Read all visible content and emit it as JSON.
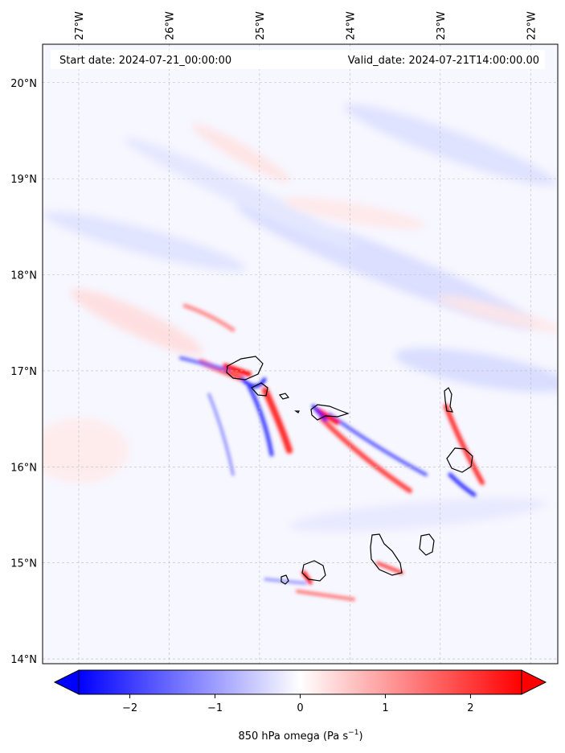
{
  "header": {
    "start_label": "Start date: 2024-07-21_00:00:00",
    "valid_label": "Valid_date: 2024-07-21T14:00:00.00"
  },
  "map": {
    "projection": "lat-lon",
    "lon_range": [
      -27.4,
      -21.7
    ],
    "lat_range": [
      13.95,
      20.4
    ],
    "lon_ticks": [
      {
        "value": -27,
        "label": "27°W"
      },
      {
        "value": -26,
        "label": "26°W"
      },
      {
        "value": -25,
        "label": "25°W"
      },
      {
        "value": -24,
        "label": "24°W"
      },
      {
        "value": -23,
        "label": "23°W"
      },
      {
        "value": -22,
        "label": "22°W"
      }
    ],
    "lat_ticks": [
      {
        "value": 20,
        "label": "20°N"
      },
      {
        "value": 19,
        "label": "19°N"
      },
      {
        "value": 18,
        "label": "18°N"
      },
      {
        "value": 17,
        "label": "17°N"
      },
      {
        "value": 16,
        "label": "16°N"
      },
      {
        "value": 15,
        "label": "15°N"
      },
      {
        "value": 14,
        "label": "14°N"
      }
    ],
    "grid": true,
    "field_colors": {
      "strong_negative": "#0000ff",
      "neutral": "#ffffff",
      "strong_positive": "#ff0000"
    }
  },
  "colorbar": {
    "min": -2.6,
    "max": 2.6,
    "ticks": [
      {
        "value": -2,
        "label": "−2"
      },
      {
        "value": -1,
        "label": "−1"
      },
      {
        "value": 0,
        "label": "0"
      },
      {
        "value": 1,
        "label": "1"
      },
      {
        "value": 2,
        "label": "2"
      }
    ],
    "label_main": "850 hPa omega (Pa s",
    "label_sup": "−1",
    "label_close": ")",
    "extend": "both",
    "color_low": "#0000ff",
    "color_mid": "#ffffff",
    "color_high": "#ff0000"
  }
}
